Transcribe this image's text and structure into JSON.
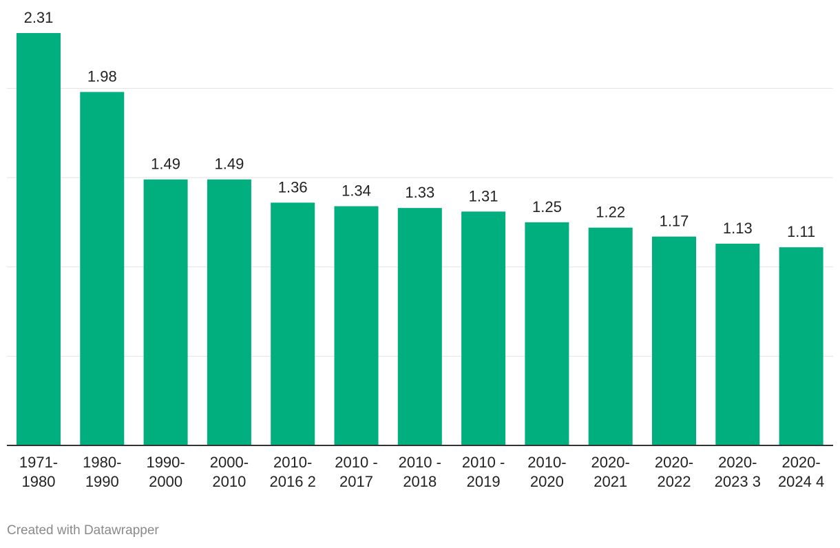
{
  "chart_data": {
    "type": "bar",
    "categories": [
      [
        "1971-",
        "1980"
      ],
      [
        "1980-",
        "1990"
      ],
      [
        "1990-",
        "2000"
      ],
      [
        "2000-",
        "2010"
      ],
      [
        "2010-",
        "2016 2"
      ],
      [
        "2010 -",
        "2017"
      ],
      [
        "2010 -",
        "2018"
      ],
      [
        "2010 -",
        "2019"
      ],
      [
        "2010-",
        "2020"
      ],
      [
        "2020-",
        "2021"
      ],
      [
        "2020-",
        "2022"
      ],
      [
        "2020-",
        "2023 3"
      ],
      [
        "2020-",
        "2024 4"
      ]
    ],
    "values": [
      2.31,
      1.98,
      1.49,
      1.49,
      1.36,
      1.34,
      1.33,
      1.31,
      1.25,
      1.22,
      1.17,
      1.13,
      1.11
    ],
    "value_labels": [
      "2.31",
      "1.98",
      "1.49",
      "1.49",
      "1.36",
      "1.34",
      "1.33",
      "1.31",
      "1.25",
      "1.22",
      "1.17",
      "1.13",
      "1.11"
    ],
    "title": "",
    "xlabel": "",
    "ylabel": "",
    "ylim": [
      0,
      2.5
    ],
    "gridlines": [
      0.5,
      1.0,
      1.5,
      2.0
    ],
    "grid": true,
    "bar_color": "#00ae7e"
  },
  "footer": {
    "credit": "Created with Datawrapper"
  }
}
